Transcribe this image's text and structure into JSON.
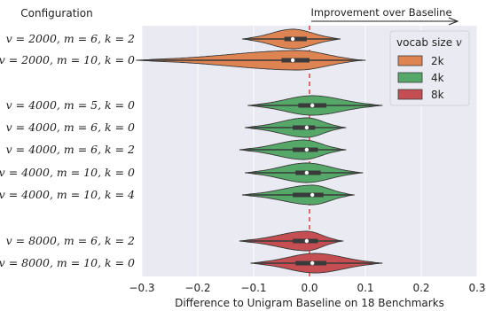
{
  "chart_data": {
    "type": "violin",
    "orientation": "horizontal",
    "ylabel": "Configuration",
    "xlabel": "Difference to Unigram Baseline on 18 Benchmarks",
    "annotation": "Improvement over Baseline",
    "xlim": [
      -0.3,
      0.3
    ],
    "xticks": [
      "−0.3",
      "−0.2",
      "−0.1",
      "0.0",
      "0.1",
      "0.2",
      "0.3"
    ],
    "xtick_values": [
      -0.3,
      -0.2,
      -0.1,
      0.0,
      0.1,
      0.2,
      0.3
    ],
    "reference_line": 0.0,
    "grid": true,
    "legend": {
      "title": "vocab size v",
      "placement": "top-right",
      "entries": [
        {
          "label": "2k",
          "color": "#dd8452"
        },
        {
          "label": "4k",
          "color": "#55a868"
        },
        {
          "label": "8k",
          "color": "#c44e52"
        }
      ]
    },
    "categories": [
      "v = 2000, m = 6, k = 2",
      "v = 2000, m = 10, k = 0",
      "v = 4000, m = 5, k = 0",
      "v = 4000, m = 6, k = 0",
      "v = 4000, m = 6, k = 2",
      "v = 4000, m = 10, k = 0",
      "v = 4000, m = 10, k = 4",
      "v = 8000, m = 6, k = 2",
      "v = 8000, m = 10, k = 0"
    ],
    "series": [
      {
        "category": "v = 2000, m = 6, k = 2",
        "vocab": "2k",
        "min": -0.12,
        "q1": -0.045,
        "median": -0.03,
        "q3": -0.005,
        "max": 0.055,
        "mode": -0.03
      },
      {
        "category": "v = 2000, m = 10, k = 0",
        "vocab": "2k",
        "min": -0.31,
        "q1": -0.05,
        "median": -0.03,
        "q3": 0.0,
        "max": 0.1,
        "mode": -0.02
      },
      {
        "category": "v = 4000, m = 5, k = 0",
        "vocab": "4k",
        "min": -0.11,
        "q1": -0.02,
        "median": 0.005,
        "q3": 0.03,
        "max": 0.13,
        "mode": 0.005
      },
      {
        "category": "v = 4000, m = 6, k = 0",
        "vocab": "4k",
        "min": -0.115,
        "q1": -0.03,
        "median": -0.005,
        "q3": 0.01,
        "max": 0.065,
        "mode": -0.005
      },
      {
        "category": "v = 4000, m = 6, k = 2",
        "vocab": "4k",
        "min": -0.125,
        "q1": -0.03,
        "median": -0.005,
        "q3": 0.015,
        "max": 0.065,
        "mode": -0.01
      },
      {
        "category": "v = 4000, m = 10, k = 0",
        "vocab": "4k",
        "min": -0.115,
        "q1": -0.025,
        "median": -0.005,
        "q3": 0.02,
        "max": 0.095,
        "mode": -0.005
      },
      {
        "category": "v = 4000, m = 10, k = 4",
        "vocab": "4k",
        "min": -0.12,
        "q1": -0.03,
        "median": 0.005,
        "q3": 0.025,
        "max": 0.08,
        "mode": 0.005
      },
      {
        "category": "v = 8000, m = 6, k = 2",
        "vocab": "8k",
        "min": -0.125,
        "q1": -0.03,
        "median": -0.005,
        "q3": 0.015,
        "max": 0.06,
        "mode": -0.005
      },
      {
        "category": "v = 8000, m = 10, k = 0",
        "vocab": "8k",
        "min": -0.105,
        "q1": -0.025,
        "median": 0.005,
        "q3": 0.03,
        "max": 0.13,
        "mode": 0.01
      }
    ]
  }
}
